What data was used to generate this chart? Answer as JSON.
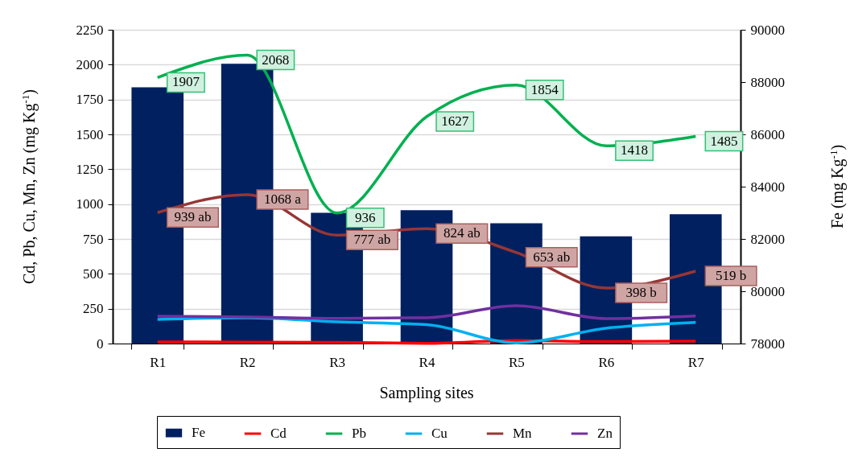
{
  "chart_data": {
    "type": "bar",
    "categories": [
      "R1",
      "R2",
      "R3",
      "R4",
      "R5",
      "R6",
      "R7"
    ],
    "xlabel": "Sampling sites",
    "ylabel": "Cd, Pb, Cu, Mn, Zn (mg Kg$^{-1}$)",
    "y2label": "Fe (mg Kg$^{-1}$)",
    "ylim": [
      0,
      2250
    ],
    "yticks": [
      0,
      250,
      500,
      750,
      1000,
      1250,
      1500,
      1750,
      2000,
      2250
    ],
    "y2lim": [
      78000,
      90000
    ],
    "y2ticks": [
      78000,
      80000,
      82000,
      84000,
      86000,
      88000,
      90000
    ],
    "grid": "y",
    "legend": "bottom",
    "series": [
      {
        "name": "Fe",
        "axis": "y2",
        "color": "#002060",
        "values": [
          87800,
          88700,
          83000,
          83100,
          82600,
          82100,
          82950
        ]
      },
      {
        "name": "Cd",
        "type": "line",
        "color": "#ff0000",
        "values": [
          12,
          10,
          8,
          2,
          22,
          14,
          18
        ]
      },
      {
        "name": "Pb",
        "type": "line",
        "color": "#00b050",
        "values": [
          1907,
          2068,
          936,
          1627,
          1854,
          1418,
          1485
        ],
        "value_labels": [
          "1907",
          "2068",
          "936",
          "1627",
          "1854",
          "1418",
          "1485"
        ]
      },
      {
        "name": "Cu",
        "type": "line",
        "color": "#00b0f0",
        "values": [
          173,
          185,
          156,
          135,
          5,
          110,
          152
        ]
      },
      {
        "name": "Mn",
        "type": "line",
        "color": "#953735",
        "values": [
          939,
          1068,
          777,
          824,
          653,
          398,
          519
        ],
        "value_labels": [
          "939 ab",
          "1068 a",
          "777 ab",
          "824 ab",
          "653 ab",
          "398 b",
          "519 b"
        ]
      },
      {
        "name": "Zn",
        "type": "line",
        "color": "#7030a0",
        "values": [
          196,
          190,
          180,
          185,
          271,
          179,
          198
        ]
      }
    ]
  }
}
